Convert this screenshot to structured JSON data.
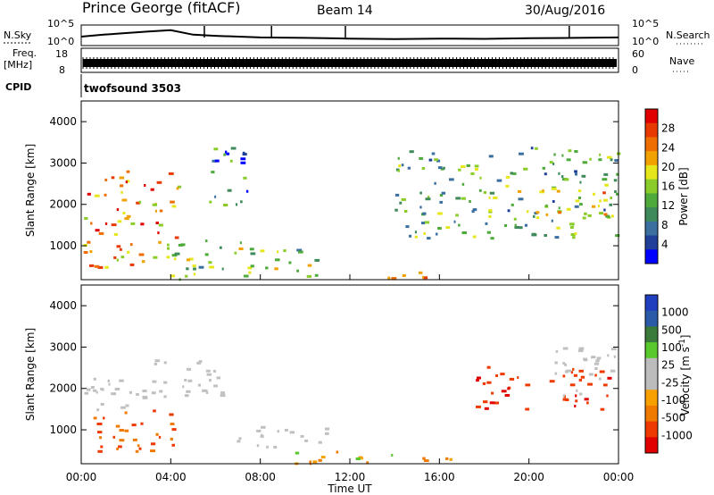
{
  "header": {
    "station": "Prince George (fitACF)",
    "beam": "Beam 14",
    "date": "30/Aug/2016",
    "cpid_label": "CPID",
    "cpid_value": "twofsound 3503"
  },
  "strip_panels": {
    "nsky": {
      "label": "N.Sky",
      "right_label": "N.Search",
      "ticks": [
        "10^5",
        "10^0"
      ]
    },
    "freq": {
      "label_line1": "Freq.",
      "label_line2": "[MHz]",
      "right_label": "Nave",
      "left_ticks": [
        "18",
        "8"
      ],
      "right_ticks": [
        "60",
        "0"
      ]
    }
  },
  "colors": {
    "power_scale": [
      "#0000ff",
      "#1f3f99",
      "#3a6fa0",
      "#3f8a5a",
      "#4faa3c",
      "#8acd2a",
      "#e6e61c",
      "#f2a200",
      "#ef6e00",
      "#e83a00",
      "#e00000"
    ],
    "velocity_scale": [
      "#e00000",
      "#ee3a00",
      "#f07a00",
      "#f7a000",
      "#bcbcbc",
      "#bcbcbc",
      "#58c82c",
      "#3a7a3a",
      "#2a5aa8",
      "#1f3fbf"
    ],
    "ground_scatter": "#c0c0c0"
  },
  "chart_data": [
    {
      "type": "line",
      "title": "N.Sky / N.Search",
      "xlabel": "",
      "ylabel": "N.Sky",
      "xlim": [
        "00:00",
        "24:00"
      ],
      "x": [
        "00:00",
        "01:00",
        "02:00",
        "03:00",
        "04:00",
        "05:00",
        "06:00",
        "08:00",
        "10:00",
        "12:00",
        "14:00",
        "16:00",
        "18:00",
        "20:00",
        "22:00",
        "24:00"
      ],
      "series": [
        {
          "name": "N.Sky",
          "values": [
            0.5,
            0.62,
            0.72,
            0.82,
            0.9,
            0.62,
            0.55,
            0.45,
            0.42,
            0.38,
            0.35,
            0.38,
            0.36,
            0.4,
            0.42,
            0.45
          ]
        }
      ]
    },
    {
      "type": "area",
      "title": "Freq. / Nave",
      "ylabel": "Freq. [MHz]",
      "ylim": [
        8,
        18
      ],
      "xlim": [
        "00:00",
        "24:00"
      ],
      "series": [
        {
          "name": "Freq.",
          "values": [
            10,
            12
          ]
        }
      ]
    },
    {
      "type": "heatmap",
      "title": "Power",
      "xlabel": "Time UT",
      "ylabel": "Slant Range [km]",
      "xlim": [
        "00:00",
        "24:00"
      ],
      "ylim": [
        180,
        4500
      ],
      "x_ticks": [
        "00:00",
        "04:00",
        "08:00",
        "12:00",
        "16:00",
        "20:00",
        "00:00"
      ],
      "y_ticks": [
        "1000",
        "2000",
        "3000",
        "4000"
      ],
      "colorbar": {
        "label": "Power [dB]",
        "range": [
          0,
          30
        ],
        "ticks": [
          "4",
          "8",
          "12",
          "16",
          "20",
          "24",
          "28"
        ]
      },
      "regions": [
        {
          "t_start": 0.0,
          "t_end": 4.4,
          "r_min": 500,
          "r_max": 2900,
          "power_db": 22
        },
        {
          "t_start": 3.5,
          "t_end": 10.5,
          "r_min": 200,
          "r_max": 1200,
          "power_db": 14
        },
        {
          "t_start": 5.5,
          "t_end": 7.5,
          "r_min": 2000,
          "r_max": 3400,
          "power_db": 8
        },
        {
          "t_start": 13.0,
          "t_end": 15.5,
          "r_min": 200,
          "r_max": 500,
          "power_db": 26
        },
        {
          "t_start": 14.0,
          "t_end": 24.0,
          "r_min": 1200,
          "r_max": 3400,
          "power_db": 12
        },
        {
          "t_start": 19.0,
          "t_end": 23.5,
          "r_min": 1600,
          "r_max": 2400,
          "power_db": 18
        }
      ]
    },
    {
      "type": "heatmap",
      "title": "Velocity",
      "xlabel": "Time UT",
      "ylabel": "Slant Range [km]",
      "xlim": [
        "00:00",
        "24:00"
      ],
      "ylim": [
        180,
        4500
      ],
      "x_ticks": [
        "00:00",
        "04:00",
        "08:00",
        "12:00",
        "16:00",
        "20:00",
        "00:00"
      ],
      "y_ticks": [
        "1000",
        "2000",
        "3000",
        "4000"
      ],
      "colorbar": {
        "label": "Velocity [m s^-1]",
        "ticks": [
          "1000",
          "500",
          "100",
          "25",
          "-25",
          "-100",
          "-500",
          "-1000"
        ]
      },
      "regions": [
        {
          "t_start": 0.0,
          "t_end": 3.0,
          "r_min": 1500,
          "r_max": 2300,
          "velocity": 0,
          "ground_scatter": true
        },
        {
          "t_start": 0.5,
          "t_end": 4.5,
          "r_min": 500,
          "r_max": 1500,
          "velocity": -300
        },
        {
          "t_start": 3.0,
          "t_end": 6.5,
          "r_min": 1800,
          "r_max": 2800,
          "velocity": 0,
          "ground_scatter": true
        },
        {
          "t_start": 6.5,
          "t_end": 11.0,
          "r_min": 600,
          "r_max": 1100,
          "velocity": 0,
          "ground_scatter": true
        },
        {
          "t_start": 9.0,
          "t_end": 17.0,
          "r_min": 200,
          "r_max": 500,
          "velocity": -80
        },
        {
          "t_start": 17.5,
          "t_end": 23.5,
          "r_min": 1500,
          "r_max": 2600,
          "velocity": -400
        },
        {
          "t_start": 21.0,
          "t_end": 24.0,
          "r_min": 1800,
          "r_max": 3000,
          "velocity": 0,
          "ground_scatter": true
        }
      ]
    }
  ]
}
